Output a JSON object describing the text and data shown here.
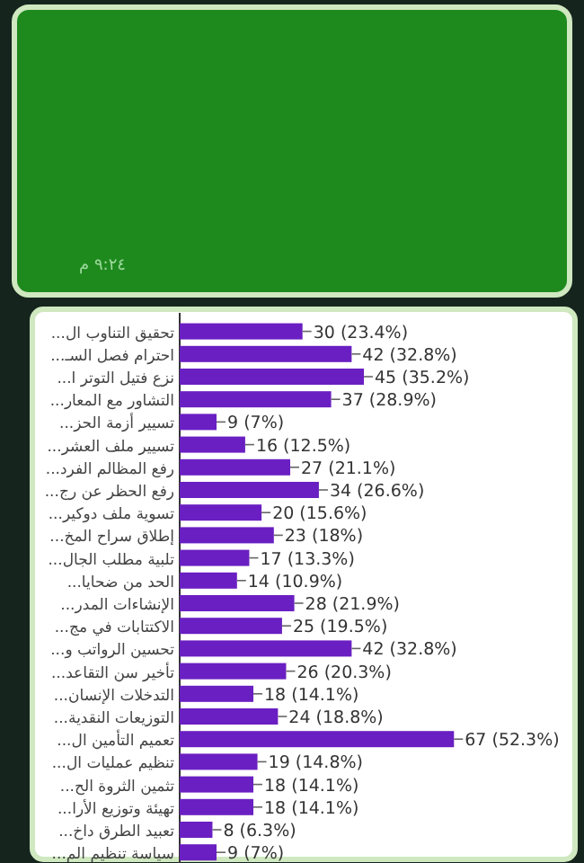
{
  "chart_data": {
    "type": "bar",
    "orientation": "horizontal",
    "categories": [
      "تحقيق التناوب ال...",
      "احترام فصل السـ...",
      "نزع فتيل التوتر ا...",
      "التشاور مع المعار...",
      "تسيير أزمة الحز...",
      "تسيير ملف العشر...",
      "رفع المظالم الفرد...",
      "رفع الحظر عن رج...",
      "تسوية ملف دوكير...",
      "إطلاق سراح المخ...",
      "تلبية مطلب الجال...",
      "الحد من ضحايا...",
      "الإنشاءات المدر...",
      "الاكتتابات في مج...",
      "تحسين الرواتب و...",
      "تأخير سن التقاعد...",
      "التدخلات الإنسان...",
      "التوزيعات النقدية...",
      "تعميم التأمين ال...",
      "تنظيم عمليات ال...",
      "تثمين الثروة الح...",
      "تهيئة وتوزيع الأرا...",
      "تعبيد الطرق داخ...",
      "سياسة تنظيم الم..."
    ],
    "values": [
      30,
      42,
      45,
      37,
      9,
      16,
      27,
      34,
      20,
      23,
      17,
      14,
      28,
      25,
      42,
      26,
      18,
      24,
      67,
      19,
      18,
      18,
      8,
      9
    ],
    "value_labels": [
      "30 (23.4%)",
      "42 (32.8%)",
      "45 (35.2%)",
      "37 (28.9%)",
      "9 (7%)",
      "16 (12.5%)",
      "27 (21.1%)",
      "34 (26.6%)",
      "20 (15.6%)",
      "23 (18%)",
      "17 (13.3%)",
      "14 (10.9%)",
      "28 (21.9%)",
      "25 (19.5%)",
      "42 (32.8%)",
      "26 (20.3%)",
      "18 (14.1%)",
      "24 (18.8%)",
      "67 (52.3%)",
      "19 (14.8%)",
      "18 (14.1%)",
      "18 (14.1%)",
      "8 (6.3%)",
      "9 (7%)"
    ],
    "color": "#6a1fc2",
    "tick_labels": "y",
    "annotations": [
      "٩:٢٤ م"
    ]
  }
}
